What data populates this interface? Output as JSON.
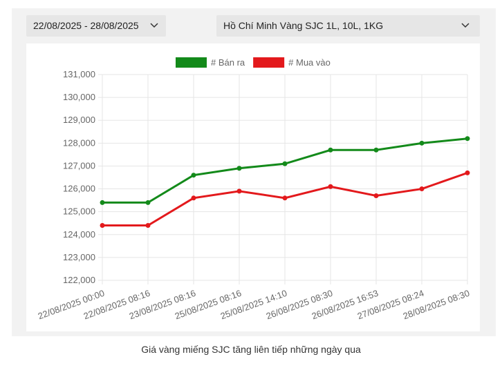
{
  "filters": {
    "date_range": "22/08/2025 - 28/08/2025",
    "product": "Hồ Chí Minh Vàng SJC 1L, 10L, 1KG"
  },
  "chart_data": {
    "type": "line",
    "categories": [
      "22/08/2025 00:00",
      "22/08/2025 08:16",
      "23/08/2025 08:16",
      "25/08/2025 08:16",
      "25/08/2025 14:10",
      "26/08/2025 08:30",
      "26/08/2025 16:53",
      "27/08/2025 08:24",
      "28/08/2025 08:30"
    ],
    "series": [
      {
        "name": "# Bán ra",
        "color": "#138a1a",
        "values": [
          125400,
          125400,
          126600,
          126900,
          127100,
          127700,
          127700,
          128000,
          128200
        ]
      },
      {
        "name": "# Mua vào",
        "color": "#e3191c",
        "values": [
          124400,
          124400,
          125600,
          125900,
          125600,
          126100,
          125700,
          126000,
          126700
        ]
      }
    ],
    "ylim": [
      122000,
      131000
    ],
    "yticks": [
      {
        "value": 122000,
        "label": "122,000"
      },
      {
        "value": 123000,
        "label": "123,000"
      },
      {
        "value": 124000,
        "label": "124,000"
      },
      {
        "value": 125000,
        "label": "125,000"
      },
      {
        "value": 126000,
        "label": "126,000"
      },
      {
        "value": 127000,
        "label": "127,000"
      },
      {
        "value": 128000,
        "label": "128,000"
      },
      {
        "value": 129000,
        "label": "129,000"
      },
      {
        "value": 130000,
        "label": "130,000"
      },
      {
        "value": 131000,
        "label": "131,000"
      }
    ],
    "grid": true,
    "legend": "top"
  },
  "caption": "Giá vàng miếng SJC tăng liên tiếp những ngày qua"
}
